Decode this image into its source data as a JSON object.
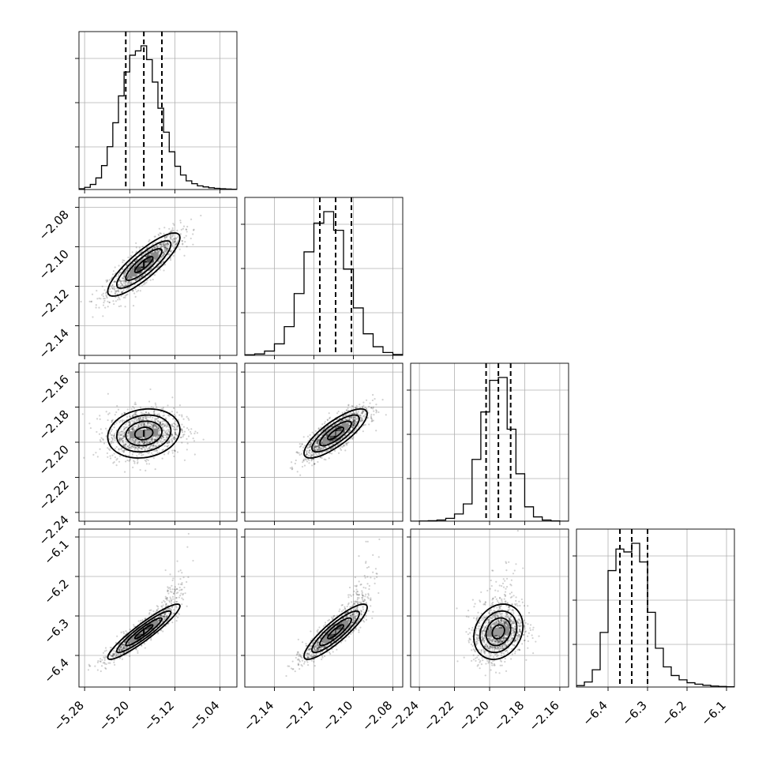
{
  "chart_data": {
    "type": "corner",
    "parameters": [
      {
        "name": "",
        "median": -5.175,
        "q16": -5.207,
        "q84": -5.143,
        "sigma": 0.032,
        "range": [
          -5.29,
          -5.01
        ],
        "ticks": [
          -5.28,
          -5.2,
          -5.12,
          -5.04
        ],
        "tick_labels": [
          "−5.28",
          "−5.20",
          "−5.12",
          "−5.04"
        ]
      },
      {
        "name": "",
        "median": -2.109,
        "q16": -2.117,
        "q84": -2.101,
        "sigma": 0.008,
        "range": [
          -2.155,
          -2.075
        ],
        "ticks": [
          -2.14,
          -2.12,
          -2.1,
          -2.08
        ],
        "tick_labels": [
          "−2.14",
          "−2.12",
          "−2.10",
          "−2.08"
        ]
      },
      {
        "name": "",
        "median": -2.195,
        "q16": -2.202,
        "q84": -2.188,
        "sigma": 0.007,
        "range": [
          -2.245,
          -2.155
        ],
        "ticks": [
          -2.24,
          -2.22,
          -2.2,
          -2.18,
          -2.16
        ],
        "tick_labels": [
          "−2.24",
          "−2.22",
          "−2.20",
          "−2.18",
          "−2.16"
        ]
      },
      {
        "name": "",
        "median": -6.34,
        "q16": -6.37,
        "q84": -6.3,
        "sigma": 0.035,
        "range": [
          -6.48,
          -6.08
        ],
        "ticks": [
          -6.4,
          -6.3,
          -6.2,
          -6.1
        ],
        "tick_labels": [
          "−6.4",
          "−6.3",
          "−6.2",
          "−6.1"
        ]
      }
    ],
    "correlations": [
      [
        1,
        0.85,
        0.15,
        0.93
      ],
      [
        0.85,
        1,
        0.8,
        0.88
      ],
      [
        0.15,
        0.8,
        1,
        0.2
      ],
      [
        0.93,
        0.88,
        0.2,
        1
      ]
    ],
    "histograms": [
      {
        "edges": [
          -5.29,
          -5.28,
          -5.27,
          -5.26,
          -5.25,
          -5.24,
          -5.23,
          -5.22,
          -5.21,
          -5.2,
          -5.19,
          -5.18,
          -5.17,
          -5.16,
          -5.15,
          -5.14,
          -5.13,
          -5.12,
          -5.11,
          -5.1,
          -5.09,
          -5.08,
          -5.07,
          -5.06,
          -5.05,
          -5.04,
          -5.03,
          -5.02,
          -5.01
        ],
        "counts": [
          5,
          15,
          35,
          80,
          165,
          295,
          460,
          645,
          810,
          925,
          955,
          990,
          895,
          740,
          560,
          395,
          260,
          160,
          100,
          60,
          40,
          25,
          18,
          12,
          8,
          5,
          3,
          2
        ]
      },
      {
        "edges": [
          -2.155,
          -2.15,
          -2.145,
          -2.14,
          -2.135,
          -2.13,
          -2.125,
          -2.12,
          -2.115,
          -2.11,
          -2.105,
          -2.1,
          -2.095,
          -2.09,
          -2.085,
          -2.08,
          -2.075
        ],
        "counts": [
          4,
          10,
          30,
          80,
          200,
          430,
          720,
          920,
          1000,
          870,
          600,
          330,
          150,
          60,
          20,
          6
        ]
      },
      {
        "edges": [
          -2.245,
          -2.24,
          -2.235,
          -2.23,
          -2.225,
          -2.22,
          -2.215,
          -2.21,
          -2.205,
          -2.2,
          -2.195,
          -2.19,
          -2.185,
          -2.18,
          -2.175,
          -2.17,
          -2.165,
          -2.16,
          -2.155
        ],
        "counts": [
          0,
          1,
          3,
          8,
          20,
          50,
          120,
          430,
          760,
          980,
          1000,
          640,
          330,
          100,
          30,
          8,
          2,
          0
        ]
      },
      {
        "edges": [
          -6.48,
          -6.46,
          -6.44,
          -6.42,
          -6.4,
          -6.38,
          -6.36,
          -6.34,
          -6.32,
          -6.3,
          -6.28,
          -6.26,
          -6.24,
          -6.22,
          -6.2,
          -6.18,
          -6.16,
          -6.14,
          -6.12,
          -6.1,
          -6.08
        ],
        "counts": [
          10,
          35,
          120,
          380,
          810,
          960,
          940,
          1000,
          870,
          520,
          270,
          140,
          80,
          50,
          30,
          20,
          12,
          7,
          4,
          2
        ]
      }
    ],
    "grid": true,
    "quantile_lines": "dashed",
    "contour_levels_sigma": [
      0.5,
      1.0,
      1.5,
      2.0
    ]
  }
}
